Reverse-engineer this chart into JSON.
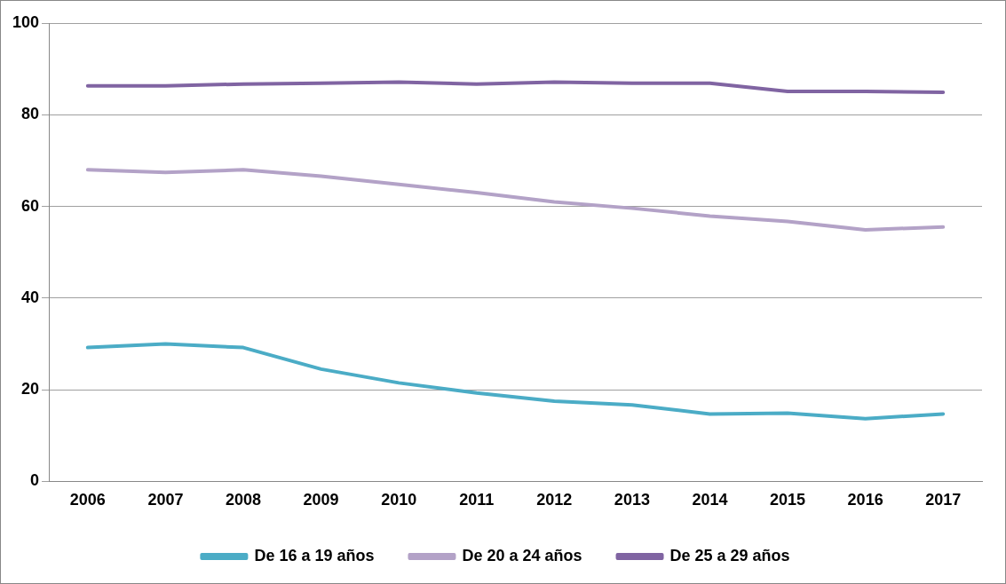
{
  "chart_data": {
    "type": "line",
    "categories": [
      "2006",
      "2007",
      "2008",
      "2009",
      "2010",
      "2011",
      "2012",
      "2013",
      "2014",
      "2015",
      "2016",
      "2017"
    ],
    "series": [
      {
        "name": "De 16 a 19 años",
        "color": "#4bacc6",
        "values": [
          29.2,
          30.0,
          29.2,
          24.5,
          21.5,
          19.3,
          17.5,
          16.7,
          14.7,
          14.9,
          13.7,
          14.7
        ]
      },
      {
        "name": "De 20 a 24 años",
        "color": "#b3a2c7",
        "values": [
          68.0,
          67.4,
          68.0,
          66.6,
          64.8,
          63.0,
          61.0,
          59.6,
          57.9,
          56.7,
          54.9,
          55.5
        ]
      },
      {
        "name": "De 25 a 29 años",
        "color": "#8064a2",
        "values": [
          86.3,
          86.3,
          86.7,
          86.9,
          87.1,
          86.7,
          87.1,
          86.9,
          86.9,
          85.1,
          85.1,
          84.9
        ]
      }
    ],
    "ylim": [
      0,
      100
    ],
    "yticks": [
      0,
      20,
      40,
      60,
      80,
      100
    ],
    "grid": "y",
    "legend": "bottom",
    "marker": "none",
    "line_style": "solid"
  }
}
